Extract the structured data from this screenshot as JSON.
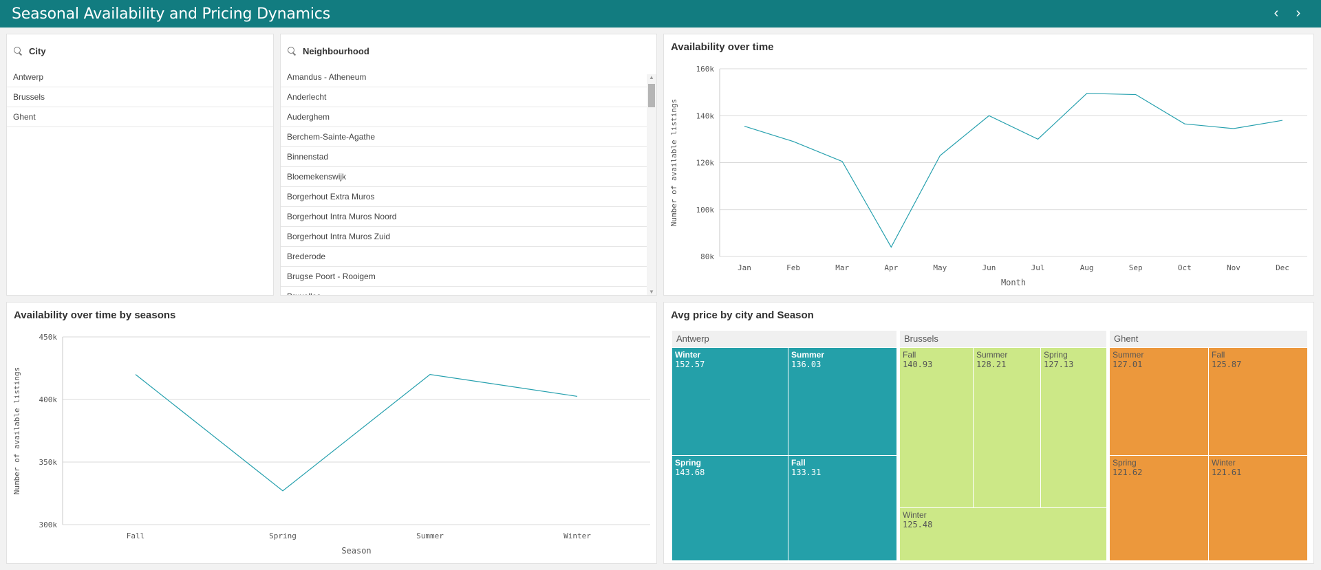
{
  "app": {
    "title": "Seasonal Availability and Pricing Dynamics",
    "prev_icon": "chevron-left-icon",
    "next_icon": "chevron-right-icon",
    "prev_glyph": "‹",
    "next_glyph": "›",
    "accent": "#127c80"
  },
  "city_filter": {
    "label": "City",
    "items": [
      "Antwerp",
      "Brussels",
      "Ghent"
    ]
  },
  "neighbourhood_filter": {
    "label": "Neighbourhood",
    "items": [
      "Amandus - Atheneum",
      "Anderlecht",
      "Auderghem",
      "Berchem-Sainte-Agathe",
      "Binnenstad",
      "Bloemekenswijk",
      "Borgerhout Extra Muros",
      "Borgerhout Intra Muros Noord",
      "Borgerhout Intra Muros Zuid",
      "Brederode",
      "Brugse Poort - Rooigem",
      "Bruxelles"
    ]
  },
  "chart_monthly": {
    "title": "Availability over time",
    "chart_data": {
      "type": "line",
      "categories": [
        "Jan",
        "Feb",
        "Mar",
        "Apr",
        "May",
        "Jun",
        "Jul",
        "Aug",
        "Sep",
        "Oct",
        "Nov",
        "Dec"
      ],
      "values": [
        135500,
        129000,
        120500,
        84000,
        123000,
        140000,
        130000,
        149500,
        149000,
        136500,
        134500,
        138000
      ],
      "xlabel": "Month",
      "ylabel": "Number of available listings",
      "yticks": [
        "80k",
        "100k",
        "120k",
        "140k",
        "160k"
      ],
      "ylim": [
        80000,
        160000
      ],
      "grid": true,
      "color": "#26a0ae"
    }
  },
  "chart_seasons": {
    "title": "Availability over time by seasons",
    "chart_data": {
      "type": "line",
      "categories": [
        "Fall",
        "Spring",
        "Summer",
        "Winter"
      ],
      "values": [
        420000,
        327000,
        420000,
        402500
      ],
      "xlabel": "Season",
      "ylabel": "Number of available listings",
      "yticks": [
        "300k",
        "350k",
        "400k",
        "450k"
      ],
      "ylim": [
        300000,
        450000
      ],
      "grid": true,
      "color": "#26a0ae"
    }
  },
  "chart_treemap": {
    "title": "Avg price by city and Season",
    "chart_data": {
      "type": "treemap",
      "groups": [
        {
          "name": "Antwerp",
          "color": "#24a0a9",
          "label_color": "#ffffff",
          "items": [
            {
              "name": "Winter",
              "value": "152.57"
            },
            {
              "name": "Summer",
              "value": "136.03"
            },
            {
              "name": "Spring",
              "value": "143.68"
            },
            {
              "name": "Fall",
              "value": "133.31"
            }
          ]
        },
        {
          "name": "Brussels",
          "color": "#cce887",
          "label_color": "#555555",
          "items": [
            {
              "name": "Fall",
              "value": "140.93"
            },
            {
              "name": "Summer",
              "value": "128.21"
            },
            {
              "name": "Spring",
              "value": "127.13"
            },
            {
              "name": "Winter",
              "value": "125.48"
            }
          ]
        },
        {
          "name": "Ghent",
          "color": "#ec983c",
          "label_color": "#555555",
          "items": [
            {
              "name": "Summer",
              "value": "127.01"
            },
            {
              "name": "Fall",
              "value": "125.87"
            },
            {
              "name": "Spring",
              "value": "121.62"
            },
            {
              "name": "Winter",
              "value": "121.61"
            }
          ]
        }
      ]
    }
  }
}
